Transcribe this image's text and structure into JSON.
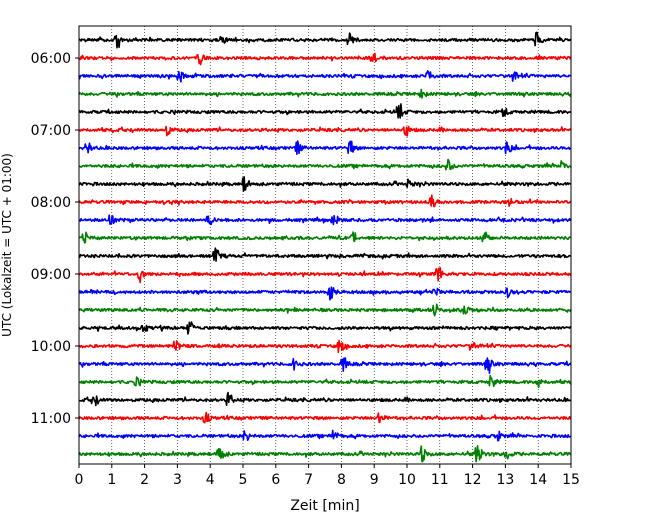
{
  "chart_data": {
    "type": "line",
    "title": "",
    "xlabel": "Zeit  [min]",
    "ylabel": "UTC (Lokalzeit = UTC + 01:00)",
    "xlim": [
      0,
      15
    ],
    "x_ticks": [
      "0",
      "1",
      "2",
      "3",
      "4",
      "5",
      "6",
      "7",
      "8",
      "9",
      "10",
      "11",
      "12",
      "13",
      "14",
      "15"
    ],
    "y_ticks": [
      "06:00",
      "07:00",
      "08:00",
      "09:00",
      "10:00",
      "11:00"
    ],
    "grid": "vertical-dotted",
    "trace_colors": [
      "#000000",
      "#ff0000",
      "#0000ff",
      "#008000"
    ],
    "series": [
      {
        "start": "05:45",
        "events": [
          [
            1.2,
            0.6
          ],
          [
            4.4,
            0.3
          ],
          [
            8.3,
            0.6
          ],
          [
            14.0,
            0.6
          ]
        ]
      },
      {
        "start": "06:00",
        "events": [
          [
            3.7,
            0.45
          ],
          [
            9.0,
            0.5
          ]
        ]
      },
      {
        "start": "06:15",
        "events": [
          [
            3.1,
            0.4
          ],
          [
            10.7,
            0.4
          ],
          [
            13.3,
            0.4
          ]
        ]
      },
      {
        "start": "06:30",
        "events": [
          [
            10.5,
            0.3
          ]
        ]
      },
      {
        "start": "06:45",
        "events": [
          [
            9.8,
            0.6
          ],
          [
            13.0,
            0.3
          ]
        ]
      },
      {
        "start": "07:00",
        "events": [
          [
            2.7,
            0.5
          ],
          [
            10.0,
            0.4
          ]
        ]
      },
      {
        "start": "07:15",
        "events": [
          [
            0.3,
            0.4
          ],
          [
            6.7,
            0.5
          ],
          [
            8.3,
            0.5
          ],
          [
            13.1,
            0.5
          ]
        ]
      },
      {
        "start": "07:30",
        "events": [
          [
            11.3,
            0.5
          ],
          [
            14.8,
            0.5
          ]
        ]
      },
      {
        "start": "07:45",
        "events": [
          [
            5.1,
            0.6
          ],
          [
            10.1,
            0.3
          ]
        ]
      },
      {
        "start": "08:00",
        "events": [
          [
            10.8,
            0.5
          ],
          [
            13.2,
            0.3
          ]
        ]
      },
      {
        "start": "08:15",
        "events": [
          [
            1.0,
            0.5
          ],
          [
            4.0,
            0.4
          ],
          [
            7.8,
            0.4
          ]
        ]
      },
      {
        "start": "08:30",
        "events": [
          [
            0.2,
            0.4
          ],
          [
            8.4,
            0.4
          ],
          [
            12.4,
            0.5
          ]
        ]
      },
      {
        "start": "08:45",
        "events": [
          [
            4.2,
            0.6
          ]
        ]
      },
      {
        "start": "09:00",
        "events": [
          [
            1.9,
            0.6
          ],
          [
            11.0,
            0.6
          ]
        ]
      },
      {
        "start": "09:15",
        "events": [
          [
            7.7,
            0.6
          ],
          [
            10.9,
            0.3
          ],
          [
            13.1,
            0.4
          ]
        ]
      },
      {
        "start": "09:30",
        "events": [
          [
            10.9,
            0.4
          ],
          [
            11.8,
            0.4
          ]
        ]
      },
      {
        "start": "09:45",
        "events": [
          [
            2.0,
            0.5
          ],
          [
            3.4,
            0.6
          ]
        ]
      },
      {
        "start": "10:00",
        "events": [
          [
            3.0,
            0.5
          ],
          [
            8.0,
            0.6
          ],
          [
            12.0,
            0.3
          ]
        ]
      },
      {
        "start": "10:15",
        "events": [
          [
            6.6,
            0.4
          ],
          [
            8.1,
            0.5
          ],
          [
            12.5,
            0.6
          ]
        ]
      },
      {
        "start": "10:30",
        "events": [
          [
            1.8,
            0.3
          ],
          [
            12.6,
            0.5
          ],
          [
            14.0,
            0.5
          ]
        ]
      },
      {
        "start": "10:45",
        "events": [
          [
            0.5,
            0.4
          ],
          [
            4.6,
            0.5
          ]
        ]
      },
      {
        "start": "11:00",
        "events": [
          [
            3.9,
            0.4
          ],
          [
            9.2,
            0.5
          ]
        ]
      },
      {
        "start": "11:15",
        "events": [
          [
            5.1,
            0.5
          ],
          [
            7.8,
            0.5
          ],
          [
            12.8,
            0.4
          ]
        ]
      },
      {
        "start": "11:30",
        "events": [
          [
            4.3,
            0.9
          ],
          [
            10.5,
            0.6
          ],
          [
            12.2,
            0.8
          ],
          [
            13.1,
            0.4
          ]
        ]
      }
    ]
  }
}
